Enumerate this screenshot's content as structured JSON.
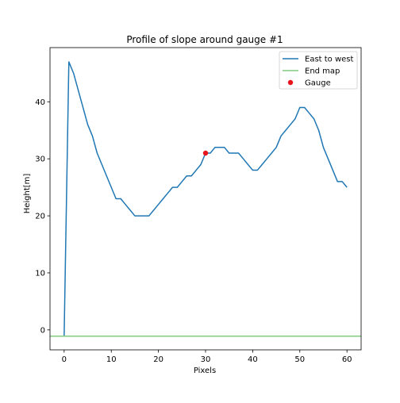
{
  "chart_data": {
    "type": "line",
    "title": "Profile of slope around gauge #1",
    "xlabel": "Pixels",
    "ylabel": "Height[m]",
    "xlim": [
      -3,
      63
    ],
    "ylim": [
      -3.5,
      49.5
    ],
    "xticks": [
      0,
      10,
      20,
      30,
      40,
      50,
      60
    ],
    "yticks": [
      0,
      10,
      20,
      30,
      40
    ],
    "grid": false,
    "legend_position": "top-right",
    "series": [
      {
        "name": "East to west",
        "kind": "line",
        "color": "#1f77b4",
        "x": [
          0,
          1,
          2,
          3,
          4,
          5,
          6,
          7,
          8,
          9,
          10,
          11,
          12,
          13,
          14,
          15,
          16,
          17,
          18,
          19,
          20,
          21,
          22,
          23,
          24,
          25,
          26,
          27,
          28,
          29,
          30,
          31,
          32,
          33,
          34,
          35,
          36,
          37,
          38,
          39,
          40,
          41,
          42,
          43,
          44,
          45,
          46,
          47,
          48,
          49,
          50,
          51,
          52,
          53,
          54,
          55,
          56,
          57,
          58,
          59,
          60
        ],
        "y": [
          -1,
          47,
          45,
          42,
          39,
          36,
          34,
          31,
          29,
          27,
          25,
          23,
          23,
          22,
          21,
          20,
          20,
          20,
          20,
          21,
          22,
          23,
          24,
          25,
          25,
          26,
          27,
          27,
          28,
          29,
          31,
          31,
          32,
          32,
          32,
          31,
          31,
          31,
          30,
          29,
          28,
          28,
          29,
          30,
          31,
          32,
          34,
          35,
          36,
          37,
          39,
          39,
          38,
          37,
          35,
          32,
          30,
          28,
          26,
          26,
          25
        ]
      },
      {
        "name": "End map",
        "kind": "hline",
        "color": "#7fcc7f",
        "y": -1.1
      },
      {
        "name": "Gauge",
        "kind": "scatter",
        "color": "#e8141b",
        "x": [
          30
        ],
        "y": [
          31
        ]
      }
    ]
  }
}
